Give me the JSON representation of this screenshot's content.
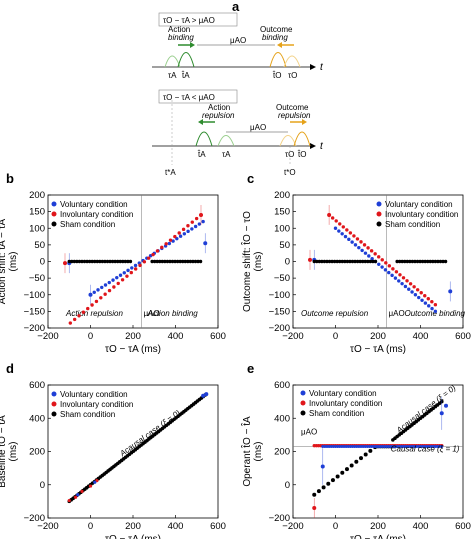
{
  "panel_a": {
    "letter": "a",
    "box1": "τO − τA > μAO",
    "box2": "τO − τA < μAO",
    "action_binding_1": "Action",
    "action_binding_2": "binding",
    "outcome_binding_1": "Outcome",
    "outcome_binding_2": "binding",
    "action_repulsion_1": "Action",
    "action_repulsion_2": "repulsion",
    "outcome_repulsion_1": "Outcome",
    "outcome_repulsion_2": "repulsion",
    "mu1": "μAO",
    "mu2": "μAO",
    "t1": "t",
    "t2": "t",
    "tauA_1": "τA",
    "tA_1": "t̂A",
    "tO_1": "t̂O",
    "tauO_1": "τO",
    "tA_2": "t̂A",
    "tauA_2": "τA",
    "tauO_2": "τO",
    "tO_2": "t̂O",
    "tstarA": "t*A",
    "tstarO": "t*O",
    "colors": {
      "action": "#2e8b2e",
      "outcome": "#e5a21a",
      "action_light": "#9bcf8f",
      "outcome_light": "#f3d38a"
    }
  },
  "legend": {
    "voluntary": "Voluntary condition",
    "involuntary": "Involuntary condition",
    "sham": "Sham condition",
    "colors": {
      "voluntary": "#1f3fd6",
      "involuntary": "#e0161b",
      "sham": "#000000"
    }
  },
  "chart_data": [
    {
      "panel": "b",
      "type": "scatter",
      "ylabel_1": "Action shift: t̂A − τA",
      "ylabel_2": "(ms)",
      "xlabel": "τO − τA (ms)",
      "xlim": [
        -200,
        600
      ],
      "ylim": [
        -200,
        200
      ],
      "xticks": [
        "−200",
        "0",
        "200",
        "400",
        "600"
      ],
      "yticks": [
        "200",
        "150",
        "100",
        "50",
        "0",
        "−50",
        "−100",
        "−150",
        "−200"
      ],
      "annotation_left": "Action repulsion",
      "annotation_right": "Action binding",
      "mu_label": "μAO",
      "mu_x": 240,
      "series": [
        {
          "name": "Voluntary condition",
          "x0": 0,
          "y0": -100,
          "x1": 530,
          "y1": 120,
          "isolated": [
            [
              -100,
              -5
            ],
            [
              0,
              -100
            ],
            [
              540,
              55
            ]
          ]
        },
        {
          "name": "Involuntary condition",
          "x0": -95,
          "y0": -185,
          "x1": 520,
          "y1": 140,
          "isolated": [
            [
              -120,
              -5
            ],
            [
              520,
              140
            ]
          ]
        },
        {
          "name": "Sham condition",
          "flat": [
            [
              -100,
              0
            ],
            [
              190,
              0
            ],
            [
              290,
              0
            ],
            [
              520,
              0
            ]
          ]
        }
      ]
    },
    {
      "panel": "c",
      "type": "scatter",
      "ylabel_1": "Outcome shift: t̂O − τO",
      "ylabel_2": "(ms)",
      "xlabel": "τO − τA (ms)",
      "xlim": [
        -200,
        600
      ],
      "ylim": [
        -200,
        200
      ],
      "xticks": [
        "−200",
        "0",
        "200",
        "400",
        "600"
      ],
      "yticks": [
        "200",
        "150",
        "100",
        "50",
        "0",
        "−50",
        "−100",
        "−150",
        "−200"
      ],
      "annotation_left": "Outcome repulsion",
      "annotation_right": "Outcome binding",
      "mu_label": "μAO",
      "mu_x": 240,
      "series": [
        {
          "name": "Voluntary condition",
          "x0": 0,
          "y0": 100,
          "x1": 470,
          "y1": -150,
          "isolated": [
            [
              -100,
              5
            ],
            [
              540,
              -90
            ]
          ]
        },
        {
          "name": "Involuntary condition",
          "x0": -30,
          "y0": 140,
          "x1": 470,
          "y1": -130,
          "isolated": [
            [
              -120,
              5
            ],
            [
              -30,
              140
            ]
          ]
        },
        {
          "name": "Sham condition",
          "flat": [
            [
              -100,
              0
            ],
            [
              190,
              0
            ],
            [
              290,
              0
            ],
            [
              520,
              0
            ]
          ]
        }
      ]
    },
    {
      "panel": "d",
      "type": "scatter",
      "ylabel_1": "Baseline t̂O − t̂A",
      "ylabel_2": "(ms)",
      "xlabel": "τO − τA (ms)",
      "xlim": [
        -200,
        600
      ],
      "ylim": [
        -200,
        600
      ],
      "xticks": [
        "−200",
        "0",
        "200",
        "400",
        "600"
      ],
      "yticks": [
        "600",
        "400",
        "200",
        "0",
        "−200"
      ],
      "annotation_diag": "Acausal case (ξ = 0)",
      "series": [
        {
          "name": "Sham condition",
          "x0": -100,
          "y0": -100,
          "x1": 540,
          "y1": 540
        }
      ]
    },
    {
      "panel": "e",
      "type": "scatter",
      "ylabel_1": "Operant t̂O − t̂A",
      "ylabel_2": "(ms)",
      "xlabel": "τO − τA (ms)",
      "xlim": [
        -200,
        600
      ],
      "ylim": [
        -200,
        600
      ],
      "xticks": [
        "−200",
        "0",
        "200",
        "400",
        "600"
      ],
      "yticks": [
        "600",
        "400",
        "200",
        "0",
        "−200"
      ],
      "annotation_acausal": "Acausal case (ξ = 0)",
      "annotation_causal": "Causal case (ξ = 1)",
      "mu_label": "μAO",
      "mu_y": 230,
      "series": [
        {
          "name": "Voluntary condition",
          "flat_y": 230,
          "x_from": -100,
          "x_to": 500
        },
        {
          "name": "Involuntary condition",
          "flat_y": 235,
          "x_from": -100,
          "x_to": 500
        },
        {
          "name": "Sham condition",
          "diag": [
            [
              -100,
              -150
            ],
            [
              200,
              230
            ]
          ],
          "diag2": [
            [
              270,
              270
            ],
            [
              500,
              500
            ]
          ]
        }
      ]
    }
  ]
}
